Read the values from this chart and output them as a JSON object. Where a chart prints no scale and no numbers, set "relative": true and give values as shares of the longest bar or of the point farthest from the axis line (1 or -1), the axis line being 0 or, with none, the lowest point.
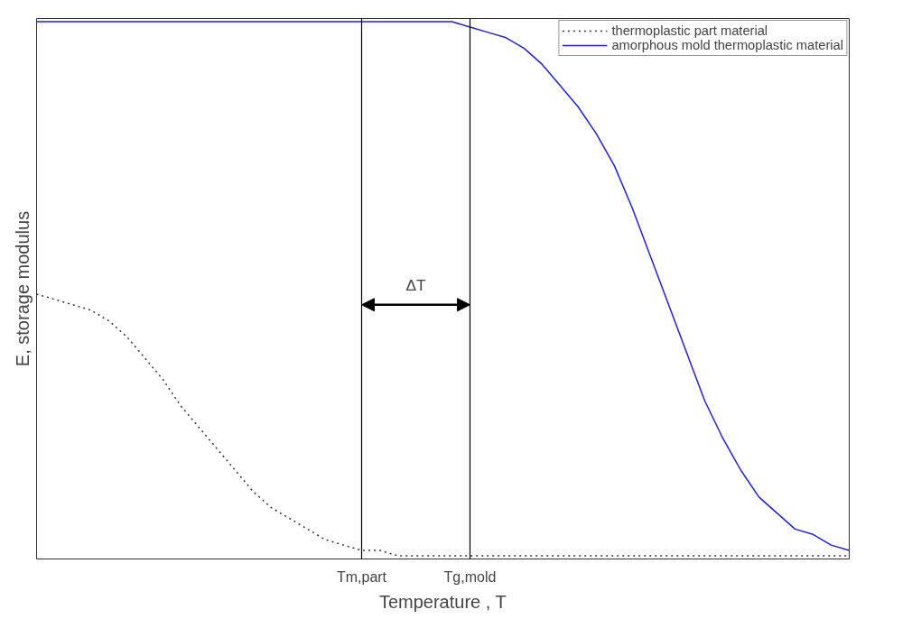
{
  "chart_data": {
    "type": "line",
    "relative": true,
    "xlabel": "Temperature , T",
    "ylabel": "E, storage modulus",
    "categories": [
      null,
      null,
      null,
      null,
      null,
      null,
      null,
      null,
      null,
      null,
      null,
      null,
      null,
      null,
      null,
      null,
      null,
      null,
      "Tm,part",
      null,
      null,
      null,
      null,
      null,
      "Tg,mold",
      null,
      null,
      null,
      null,
      null,
      null,
      null,
      null,
      null,
      null,
      null,
      null,
      null,
      null,
      null,
      null,
      null,
      null,
      null,
      null,
      null
    ],
    "series": [
      {
        "name": "thermoplastic part material",
        "color": "#333333",
        "line_style": "dotted",
        "values": [
          0.49,
          0.48,
          0.47,
          0.46,
          0.44,
          0.41,
          0.37,
          0.33,
          0.28,
          0.24,
          0.2,
          0.16,
          0.12,
          0.09,
          0.07,
          0.05,
          0.03,
          0.02,
          0.01,
          0.01,
          0,
          0,
          0,
          0,
          0,
          0,
          0,
          0,
          0,
          0,
          0,
          0,
          0,
          0,
          0,
          0,
          0,
          0,
          0,
          0,
          0,
          0,
          0,
          0,
          0,
          0
        ]
      },
      {
        "name": "amorphous mold thermoplastic material",
        "color": "#2020dd",
        "line_style": "solid",
        "values": [
          1,
          1,
          1,
          1,
          1,
          1,
          1,
          1,
          1,
          1,
          1,
          1,
          1,
          1,
          1,
          1,
          1,
          1,
          1,
          1,
          1,
          1,
          1,
          1,
          0.99,
          0.98,
          0.97,
          0.95,
          0.92,
          0.88,
          0.84,
          0.79,
          0.73,
          0.65,
          0.56,
          0.47,
          0.38,
          0.29,
          0.22,
          0.16,
          0.11,
          0.08,
          0.05,
          0.04,
          0.02,
          0.01
        ]
      }
    ],
    "ref_lines": [
      {
        "axis": "x",
        "value": "Tm,part",
        "color": "#000000"
      },
      {
        "axis": "x",
        "value": "Tg,mold",
        "color": "#000000"
      }
    ],
    "annotations": [
      "ΔT"
    ],
    "legend": "top right"
  }
}
